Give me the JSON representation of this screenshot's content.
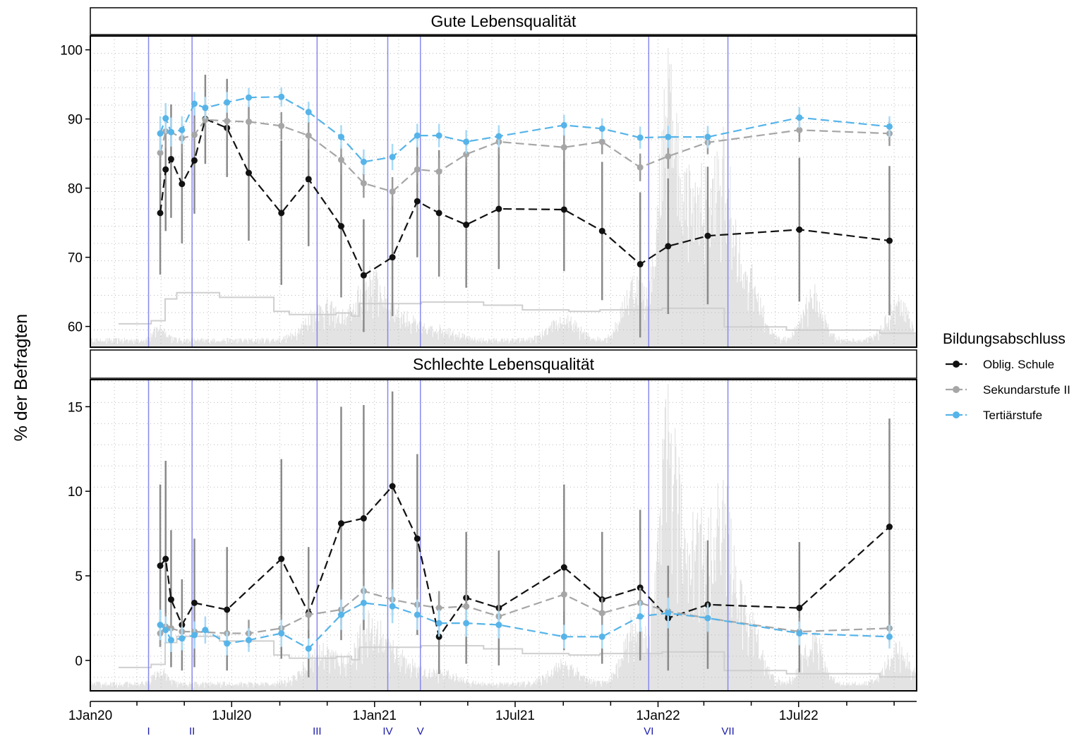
{
  "chart_data": {
    "type": "line",
    "ylabel": "% der Befragten",
    "legend": {
      "title": "Bildungsabschluss",
      "placement": "right",
      "entries": [
        "Oblig. Schule",
        "Sekundarstufe II",
        "Tertiärstufe"
      ]
    },
    "colors": {
      "Oblig. Schule": "#111111",
      "Sekundarstufe II": "#a6a6a6",
      "Tertiärstufe": "#56b4e9",
      "phase_lines": "#8888ee",
      "phase_labels": "#1a1aaa",
      "background_bars": "#e3e3e3",
      "background_step": "#cfcfcf"
    },
    "x_axis": {
      "range": [
        "2020-01-01",
        "2022-11-30"
      ],
      "tick_labels": [
        "1Jan20",
        "1Jul20",
        "1Jan21",
        "1Jul21",
        "1Jan22",
        "1Jul22"
      ],
      "tick_dates": [
        "2020-01-01",
        "2020-07-01",
        "2021-01-01",
        "2021-07-01",
        "2022-01-01",
        "2022-07-01"
      ],
      "grid": true
    },
    "phases": [
      {
        "label": "I",
        "date": "2020-03-16"
      },
      {
        "label": "II",
        "date": "2020-05-11"
      },
      {
        "label": "III",
        "date": "2020-10-19"
      },
      {
        "label": "IV",
        "date": "2021-01-18"
      },
      {
        "label": "V",
        "date": "2021-03-01"
      },
      {
        "label": "VI",
        "date": "2021-12-20"
      },
      {
        "label": "VII",
        "date": "2022-04-01"
      }
    ],
    "panels": [
      {
        "title": "Gute Lebensqualität",
        "ylim": [
          57,
          102
        ],
        "yticks": [
          60,
          70,
          80,
          90,
          100
        ],
        "series": [
          {
            "name": "Oblig. Schule",
            "x": [
              "2020-03-31",
              "2020-04-07",
              "2020-04-14",
              "2020-04-28",
              "2020-05-14",
              "2020-05-28",
              "2020-06-25",
              "2020-07-23",
              "2020-09-03",
              "2020-10-08",
              "2020-11-19",
              "2020-12-18",
              "2021-01-24",
              "2021-02-25",
              "2021-03-25",
              "2021-04-29",
              "2021-06-10",
              "2021-09-02",
              "2021-10-21",
              "2021-12-09",
              "2022-01-14",
              "2022-03-06",
              "2022-07-02",
              "2022-10-26"
            ],
            "y": [
              76.4,
              82.7,
              84.2,
              80.6,
              84.0,
              90.0,
              88.7,
              82.2,
              76.4,
              81.3,
              74.5,
              67.4,
              70.0,
              78.1,
              76.4,
              74.7,
              77.0,
              76.9,
              73.8,
              69.0,
              71.6,
              73.1,
              74.0,
              72.4
            ],
            "lo": [
              67.5,
              73.8,
              75.7,
              72.0,
              76.3,
              83.5,
              81.6,
              72.4,
              66.0,
              71.6,
              64.2,
              59.2,
              61.5,
              70.0,
              67.2,
              65.6,
              68.3,
              68.0,
              63.8,
              58.4,
              61.8,
              63.2,
              63.6,
              61.6
            ],
            "hi": [
              85.3,
              91.5,
              92.1,
              89.1,
              91.6,
              96.4,
              95.8,
              92.0,
              86.9,
              91.0,
              84.8,
              75.5,
              78.6,
              86.2,
              85.5,
              83.8,
              85.7,
              85.9,
              83.8,
              79.4,
              81.4,
              83.1,
              84.4,
              83.2
            ]
          },
          {
            "name": "Sekundarstufe II",
            "x": [
              "2020-03-31",
              "2020-04-07",
              "2020-04-14",
              "2020-04-28",
              "2020-05-14",
              "2020-05-28",
              "2020-06-25",
              "2020-07-23",
              "2020-09-03",
              "2020-10-08",
              "2020-11-19",
              "2020-12-18",
              "2021-01-24",
              "2021-02-25",
              "2021-03-25",
              "2021-04-29",
              "2021-06-10",
              "2021-09-02",
              "2021-10-21",
              "2021-12-09",
              "2022-01-14",
              "2022-03-06",
              "2022-07-02",
              "2022-10-26"
            ],
            "y": [
              85.1,
              88.2,
              88.1,
              87.2,
              87.7,
              89.9,
              89.7,
              89.6,
              89.0,
              87.6,
              84.1,
              80.7,
              79.5,
              82.7,
              82.4,
              84.9,
              86.7,
              85.9,
              86.7,
              83.0,
              84.6,
              86.6,
              88.4,
              87.9
            ],
            "lo": [
              82.2,
              85.8,
              85.9,
              85.0,
              85.3,
              87.7,
              87.7,
              87.6,
              87.0,
              85.6,
              82.0,
              78.6,
              77.4,
              80.7,
              80.4,
              83.0,
              84.9,
              84.0,
              84.9,
              81.0,
              82.8,
              84.9,
              86.7,
              86.1
            ],
            "hi": [
              88.0,
              90.6,
              90.3,
              89.4,
              90.1,
              92.1,
              91.7,
              91.6,
              91.0,
              89.6,
              86.2,
              82.8,
              81.6,
              84.7,
              84.4,
              86.8,
              88.5,
              87.8,
              88.5,
              85.0,
              86.4,
              88.3,
              90.1,
              89.7
            ]
          },
          {
            "name": "Tertiärstufe",
            "x": [
              "2020-03-31",
              "2020-04-07",
              "2020-04-14",
              "2020-04-28",
              "2020-05-14",
              "2020-05-28",
              "2020-06-25",
              "2020-07-23",
              "2020-09-03",
              "2020-10-08",
              "2020-11-19",
              "2020-12-18",
              "2021-01-24",
              "2021-02-25",
              "2021-03-25",
              "2021-04-29",
              "2021-06-10",
              "2021-09-02",
              "2021-10-21",
              "2021-12-09",
              "2022-01-14",
              "2022-03-06",
              "2022-07-02",
              "2022-10-26"
            ],
            "y": [
              87.9,
              90.1,
              88.1,
              88.4,
              92.2,
              91.6,
              92.4,
              93.1,
              93.2,
              91.0,
              87.4,
              83.8,
              84.5,
              87.6,
              87.6,
              86.7,
              87.5,
              89.1,
              88.6,
              87.3,
              87.4,
              87.4,
              90.2,
              88.9
            ],
            "lo": [
              85.4,
              87.9,
              86.0,
              86.4,
              90.5,
              90.0,
              90.9,
              91.7,
              91.8,
              89.5,
              85.7,
              82.0,
              82.6,
              85.9,
              85.9,
              85.0,
              85.9,
              87.6,
              87.1,
              85.7,
              85.8,
              85.8,
              88.7,
              87.4
            ],
            "hi": [
              90.4,
              92.3,
              90.2,
              90.4,
              93.9,
              93.2,
              93.9,
              94.5,
              94.6,
              92.5,
              89.1,
              85.6,
              86.4,
              89.3,
              89.3,
              88.4,
              89.1,
              90.6,
              90.1,
              88.9,
              89.0,
              89.0,
              91.7,
              90.4
            ]
          }
        ]
      },
      {
        "title": "Schlechte Lebensqualität",
        "ylim": [
          -1.8,
          16.6
        ],
        "yticks": [
          0,
          5,
          10,
          15
        ],
        "series": [
          {
            "name": "Oblig. Schule",
            "x": [
              "2020-03-31",
              "2020-04-07",
              "2020-04-14",
              "2020-04-28",
              "2020-05-14",
              "2020-06-25",
              "2020-09-03",
              "2020-10-08",
              "2020-11-19",
              "2020-12-18",
              "2021-01-24",
              "2021-02-25",
              "2021-03-25",
              "2021-04-29",
              "2021-06-10",
              "2021-09-02",
              "2021-10-21",
              "2021-12-09",
              "2022-01-14",
              "2022-03-06",
              "2022-07-02",
              "2022-10-26"
            ],
            "y": [
              5.6,
              6.0,
              3.6,
              2.1,
              3.4,
              3.0,
              6.0,
              2.8,
              8.1,
              8.4,
              10.3,
              7.2,
              1.4,
              3.7,
              3.1,
              5.5,
              3.6,
              4.3,
              2.5,
              3.3,
              3.1,
              7.9
            ],
            "lo": [
              0.8,
              1.0,
              -0.4,
              -0.6,
              -0.4,
              -0.6,
              0.1,
              -1.0,
              1.2,
              1.8,
              4.0,
              1.5,
              -0.8,
              -0.2,
              -0.3,
              0.6,
              -0.2,
              0.0,
              -0.6,
              -0.5,
              -0.7,
              1.5
            ],
            "hi": [
              10.4,
              11.8,
              7.7,
              4.8,
              7.2,
              6.7,
              11.9,
              6.7,
              15.0,
              15.1,
              15.9,
              12.2,
              3.9,
              7.6,
              6.5,
              10.4,
              7.6,
              8.9,
              5.6,
              7.1,
              7.0,
              14.3
            ]
          },
          {
            "name": "Sekundarstufe II",
            "x": [
              "2020-03-31",
              "2020-04-07",
              "2020-04-14",
              "2020-04-28",
              "2020-05-14",
              "2020-06-25",
              "2020-07-23",
              "2020-09-03",
              "2020-10-08",
              "2020-11-19",
              "2020-12-18",
              "2021-01-24",
              "2021-02-25",
              "2021-03-25",
              "2021-04-29",
              "2021-06-10",
              "2021-09-02",
              "2021-10-21",
              "2021-12-09",
              "2022-01-14",
              "2022-03-06",
              "2022-07-02",
              "2022-10-26"
            ],
            "y": [
              1.6,
              2.0,
              1.9,
              1.7,
              1.7,
              1.6,
              1.6,
              1.9,
              2.7,
              3.0,
              4.1,
              3.6,
              3.3,
              3.1,
              3.2,
              2.6,
              3.9,
              2.8,
              3.4,
              2.9,
              2.5,
              1.7,
              1.9
            ],
            "lo": [
              0.8,
              1.2,
              1.1,
              0.9,
              0.9,
              0.8,
              0.8,
              1.1,
              1.8,
              2.1,
              3.1,
              2.6,
              2.3,
              2.1,
              2.2,
              1.7,
              2.9,
              1.9,
              2.5,
              2.0,
              1.6,
              0.9,
              1.1
            ],
            "hi": [
              2.4,
              2.8,
              2.7,
              2.5,
              2.5,
              2.4,
              2.4,
              2.7,
              3.6,
              3.9,
              5.1,
              4.6,
              4.3,
              4.1,
              4.2,
              3.5,
              4.9,
              3.7,
              4.3,
              3.8,
              3.4,
              2.5,
              2.7
            ]
          },
          {
            "name": "Tertiärstufe",
            "x": [
              "2020-03-31",
              "2020-04-07",
              "2020-04-14",
              "2020-04-28",
              "2020-05-14",
              "2020-05-28",
              "2020-06-25",
              "2020-07-23",
              "2020-09-03",
              "2020-10-08",
              "2020-11-19",
              "2020-12-18",
              "2021-01-24",
              "2021-02-25",
              "2021-03-25",
              "2021-04-29",
              "2021-06-10",
              "2021-09-02",
              "2021-10-21",
              "2021-12-09",
              "2022-01-14",
              "2022-03-06",
              "2022-07-02",
              "2022-10-26"
            ],
            "y": [
              2.1,
              1.8,
              1.2,
              1.3,
              1.5,
              1.8,
              1.0,
              1.2,
              1.6,
              0.7,
              2.7,
              3.4,
              3.2,
              2.7,
              2.2,
              2.2,
              2.1,
              1.4,
              1.4,
              2.6,
              2.8,
              2.5,
              1.6,
              1.4
            ],
            "lo": [
              1.2,
              1.0,
              0.5,
              0.6,
              0.7,
              1.0,
              0.3,
              0.5,
              0.8,
              0.1,
              1.8,
              2.4,
              2.2,
              1.8,
              1.4,
              1.4,
              1.3,
              0.7,
              0.7,
              1.7,
              1.9,
              1.7,
              0.9,
              0.7
            ],
            "hi": [
              3.0,
              2.6,
              1.9,
              2.0,
              2.3,
              2.6,
              1.7,
              1.9,
              2.4,
              1.3,
              3.6,
              4.4,
              4.2,
              3.6,
              3.0,
              3.0,
              2.9,
              2.1,
              2.1,
              3.5,
              3.7,
              3.3,
              2.3,
              2.1
            ]
          }
        ]
      }
    ]
  }
}
